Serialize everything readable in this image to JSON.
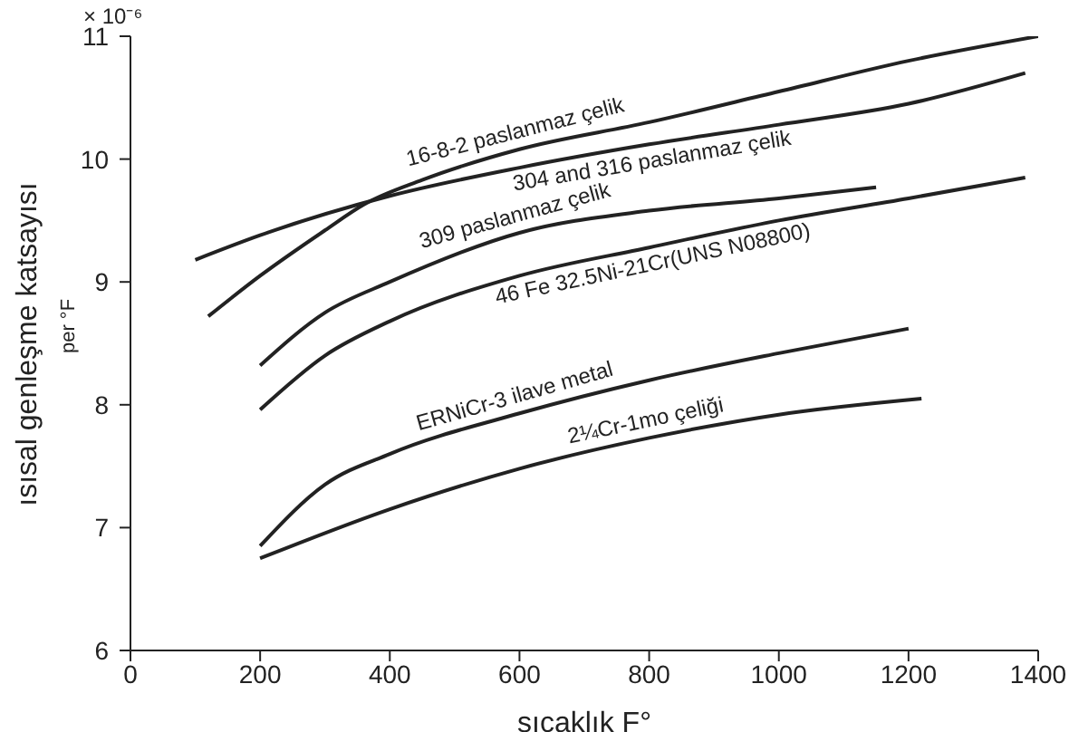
{
  "chart_data": {
    "type": "line",
    "xlabel": "sıcaklık  F°",
    "ylabel": "ısısal genleşme katsayısı",
    "annotations": [
      "× 10⁻⁶",
      "per °F"
    ],
    "xlim": [
      0,
      1400
    ],
    "xticks": [
      0,
      200,
      400,
      600,
      800,
      1000,
      1200,
      1400
    ],
    "ylim": [
      6,
      11
    ],
    "yticks": [
      6,
      7,
      8,
      9,
      10,
      11
    ],
    "grid": false,
    "legend": false,
    "marker": "none",
    "line_style": "solid",
    "series": [
      {
        "name": "16-8-2 paslanmaz çelik",
        "color": "#222222",
        "x": [
          120,
          200,
          300,
          360,
          450,
          600,
          800,
          1000,
          1200,
          1400
        ],
        "values": [
          8.72,
          9.05,
          9.42,
          9.63,
          9.83,
          10.08,
          10.3,
          10.55,
          10.8,
          11.0
        ]
      },
      {
        "name": "304 and 316 paslanmaz çelik",
        "color": "#222222",
        "x": [
          100,
          200,
          400,
          600,
          800,
          1000,
          1200,
          1380
        ],
        "values": [
          9.18,
          9.38,
          9.7,
          9.93,
          10.12,
          10.28,
          10.45,
          10.7
        ]
      },
      {
        "name": "309 paslanmaz çelik",
        "color": "#222222",
        "x": [
          200,
          300,
          400,
          600,
          800,
          1000,
          1150
        ],
        "values": [
          8.32,
          8.75,
          9.0,
          9.4,
          9.58,
          9.68,
          9.77
        ]
      },
      {
        "name": "46 Fe 32.5Ni-21Cr(UNS N08800)",
        "color": "#222222",
        "x": [
          200,
          300,
          400,
          600,
          800,
          1000,
          1200,
          1380
        ],
        "values": [
          7.96,
          8.4,
          8.68,
          9.05,
          9.28,
          9.5,
          9.68,
          9.85
        ]
      },
      {
        "name": "ERNiCr-3  ilave metal",
        "color": "#222222",
        "x": [
          200,
          300,
          400,
          600,
          800,
          1000,
          1200
        ],
        "values": [
          6.85,
          7.35,
          7.6,
          7.93,
          8.2,
          8.42,
          8.62
        ]
      },
      {
        "name": "2¼Cr-1mo  çeliği",
        "color": "#222222",
        "x": [
          200,
          400,
          600,
          800,
          1000,
          1220
        ],
        "values": [
          6.75,
          7.15,
          7.48,
          7.73,
          7.92,
          8.05
        ]
      }
    ]
  }
}
